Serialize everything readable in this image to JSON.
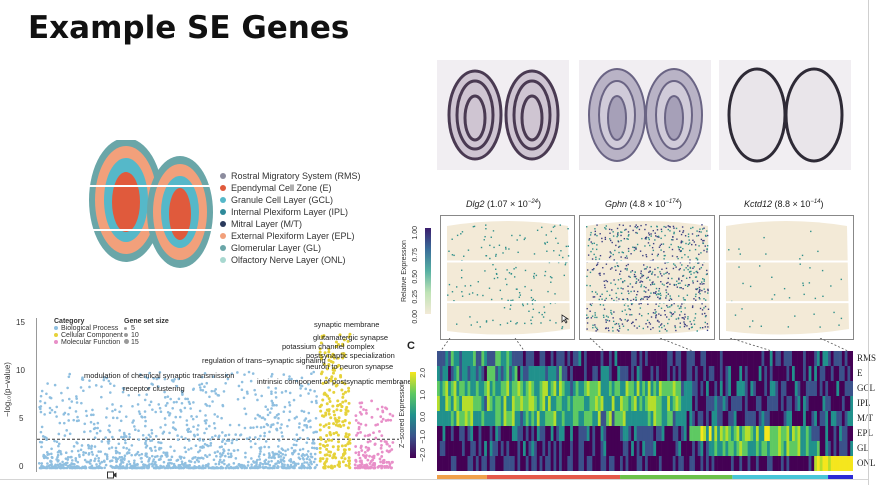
{
  "slide": {
    "title": "Example SE Genes"
  },
  "layers_legend": [
    {
      "label": "Rostral Migratory System (RMS)",
      "color": "#8c8c9e"
    },
    {
      "label": "Ependymal Cell Zone (E)",
      "color": "#e05a3c"
    },
    {
      "label": "Granule Cell Layer (GCL)",
      "color": "#55b8c9"
    },
    {
      "label": "Internal Plexiform Layer (IPL)",
      "color": "#2e8a9a"
    },
    {
      "label": "Mitral Layer (M/T)",
      "color": "#2a3a5c"
    },
    {
      "label": "External Plexiform Layer (EPL)",
      "color": "#f2a07b"
    },
    {
      "label": "Glomerular Layer (GL)",
      "color": "#6aa6a8"
    },
    {
      "label": "Olfactory Nerve Layer (ONL)",
      "color": "#a8d8d0"
    }
  ],
  "genes": [
    {
      "name": "Dlg2",
      "pvalue": "(1.07 × 10",
      "exp": "−24",
      "close": ")"
    },
    {
      "name": "Gphn",
      "pvalue": "(4.8 × 10",
      "exp": "−174",
      "close": ")"
    },
    {
      "name": "Kctd12",
      "pvalue": "(8.8 × 10",
      "exp": "−14",
      "close": ")"
    }
  ],
  "relexp_scale": {
    "label": "Relative Expression",
    "ticks": [
      "0.00",
      "0.25",
      "0.50",
      "0.75",
      "1.00"
    ]
  },
  "manhattan": {
    "ylabel": "−log₁₀(p−value)",
    "yticks": [
      "0",
      "5",
      "10",
      "15"
    ],
    "legend_category_title": "Category",
    "legend_categories": [
      {
        "label": "Biological Process",
        "color": "#8fbfe0"
      },
      {
        "label": "Cellular Component",
        "color": "#e6d23a"
      },
      {
        "label": "Molecular Function",
        "color": "#e88fc8"
      }
    ],
    "legend_size_title": "Gene set size",
    "legend_sizes": [
      "5",
      "10",
      "15"
    ],
    "annotations": [
      "synaptic membrane",
      "glutamatergic synapse",
      "potassium channel complex",
      "postsynaptic specialization",
      "regulation of trans−synaptic signaling",
      "neuron to neuron synapse",
      "modulation of chemical synaptic transmission",
      "intrinsic component of postsynaptic membrane",
      "receptor clustering"
    ]
  },
  "heatmap": {
    "panel_label": "C",
    "rows": [
      "RMS",
      "E",
      "GCL",
      "IPL",
      "M/T",
      "EPL",
      "GL",
      "ONL"
    ],
    "scale_label": "Z−scored Expression",
    "scale_ticks": [
      "2.0",
      "1.0",
      "0.0",
      "−1.0",
      "−2.0"
    ],
    "annotation_bar_colors": [
      "#f0a14a",
      "#e55a4a",
      "#6cc24a",
      "#48c6d8",
      "#2a2ad6"
    ]
  }
}
